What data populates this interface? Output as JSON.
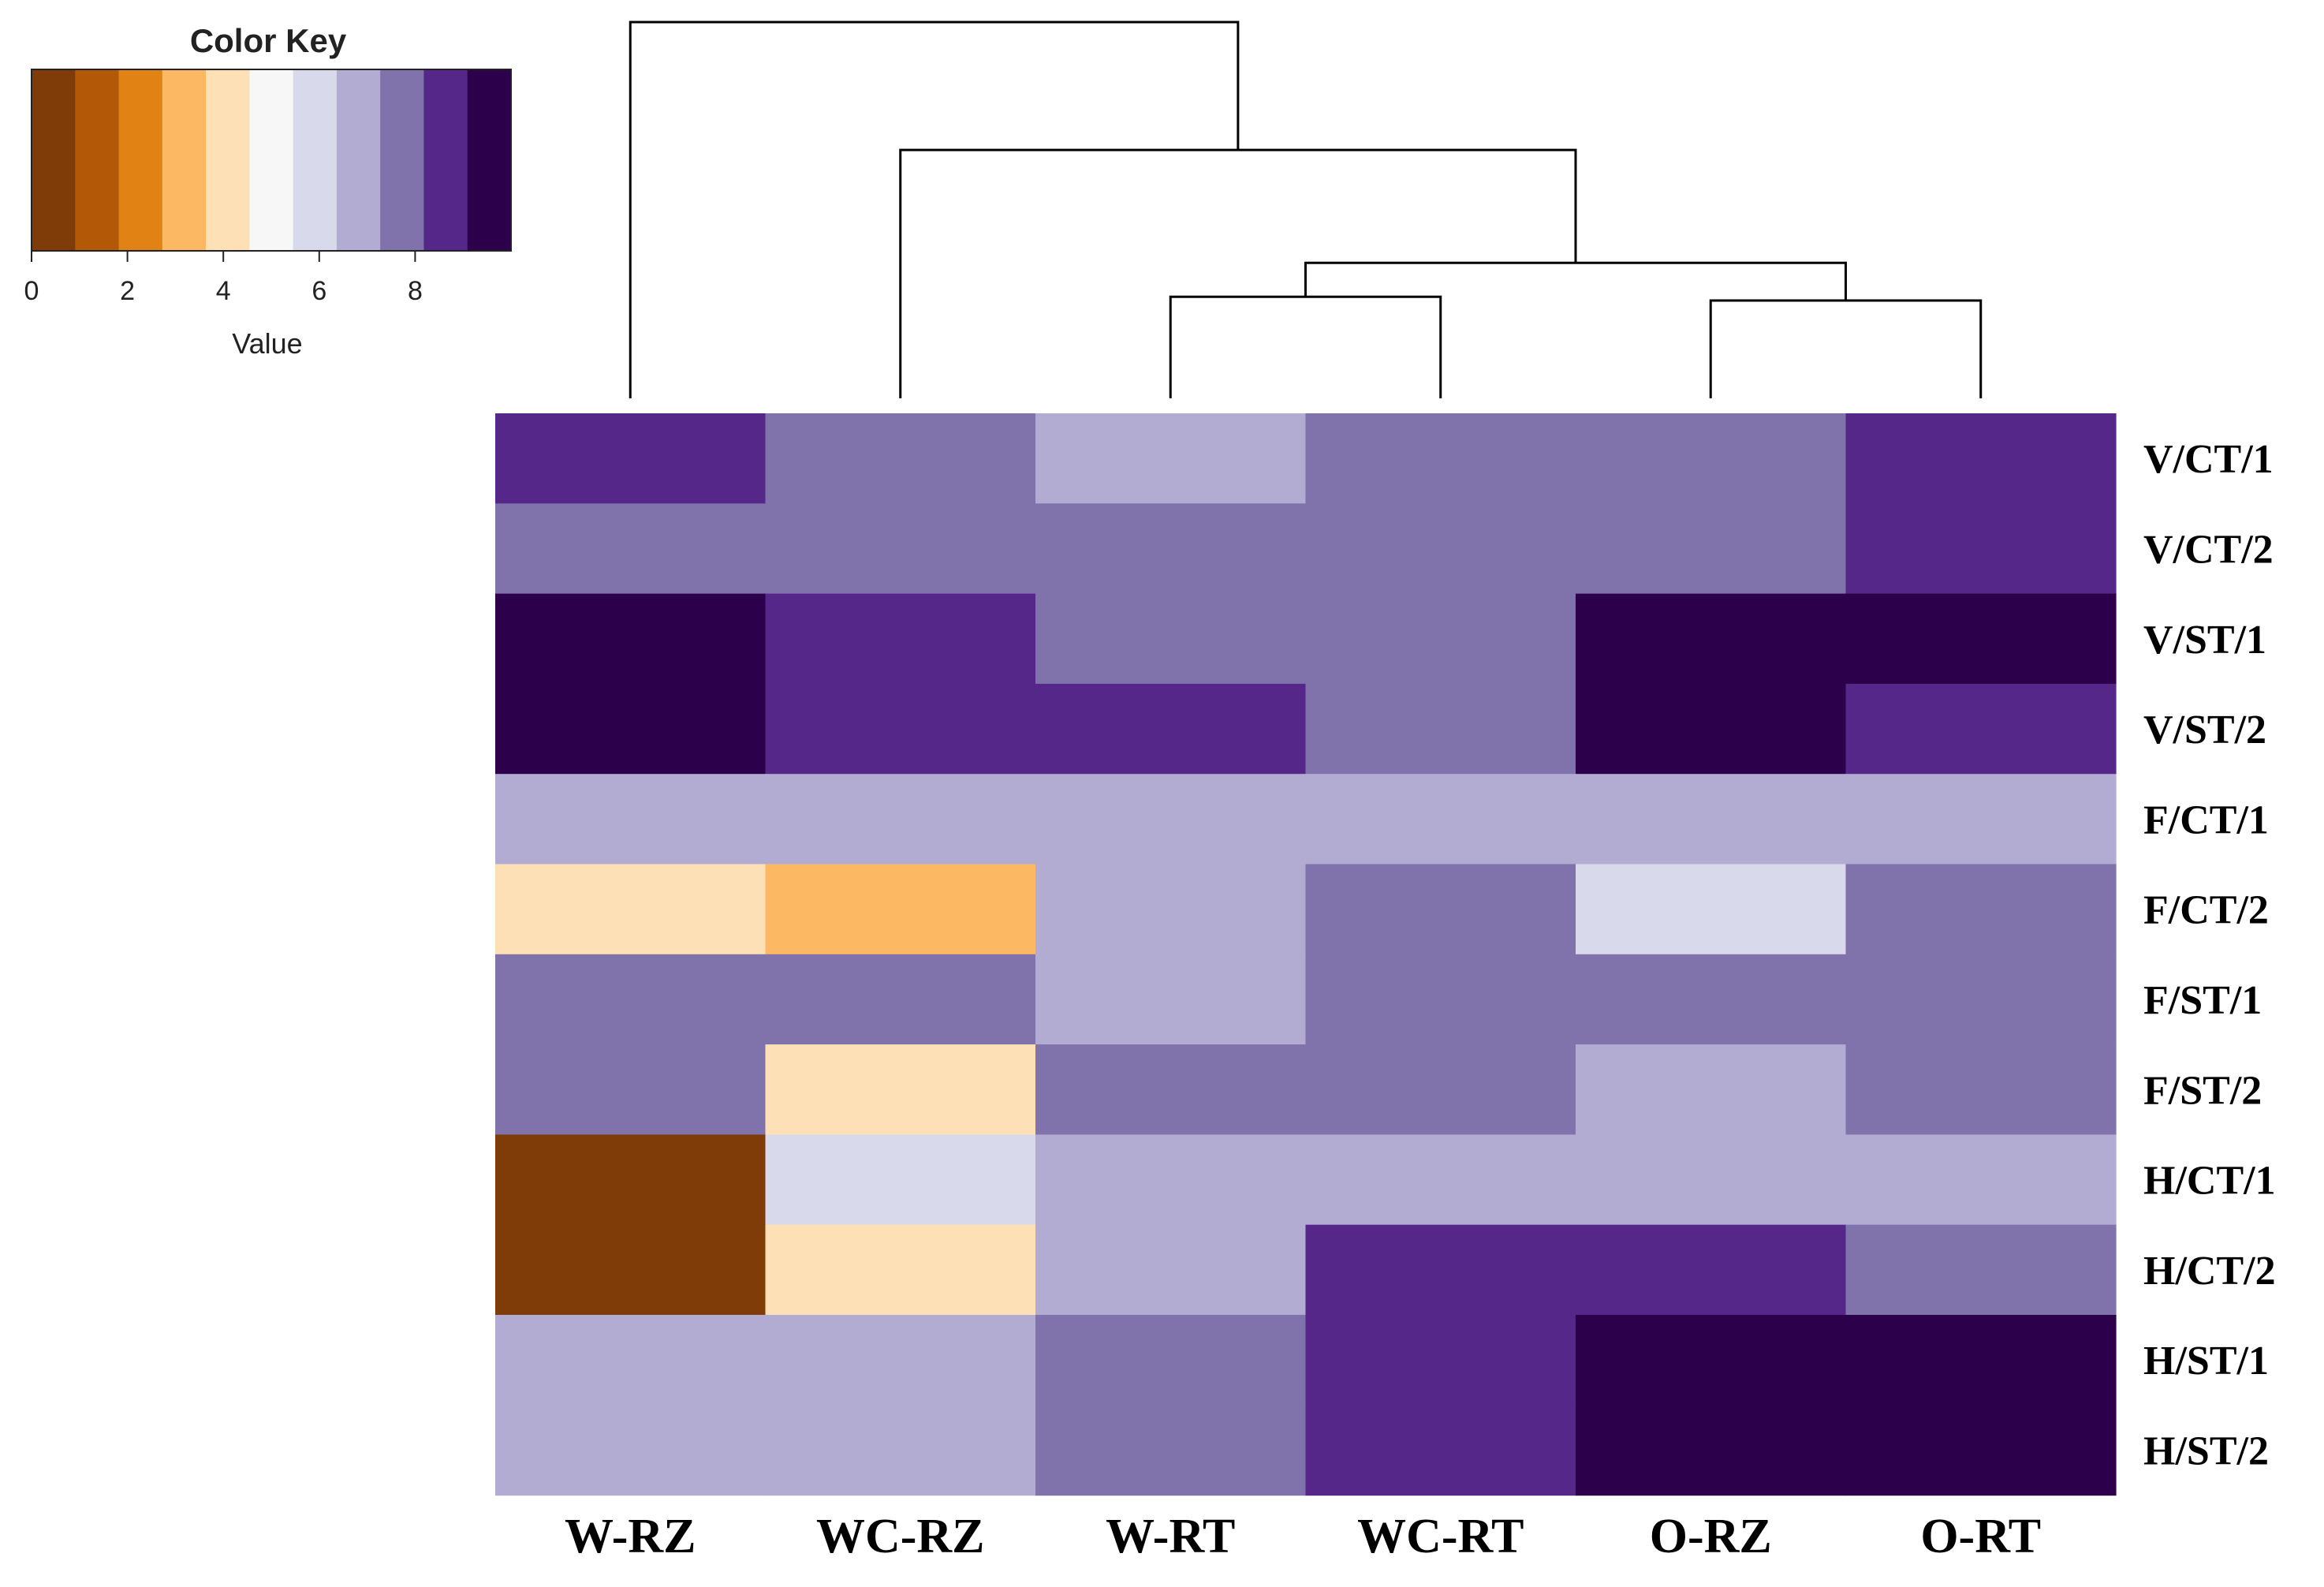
{
  "chart_data": {
    "type": "heatmap",
    "rows": [
      "V/CT/1",
      "V/CT/2",
      "V/ST/1",
      "V/ST/2",
      "F/CT/1",
      "F/CT/2",
      "F/ST/1",
      "F/ST/2",
      "H/CT/1",
      "H/CT/2",
      "H/ST/1",
      "H/ST/2"
    ],
    "columns": [
      "W-RZ",
      "WC-RZ",
      "W-RT",
      "WC-RT",
      "O-RZ",
      "O-RT"
    ],
    "values": [
      [
        9,
        8,
        7,
        8,
        8,
        9
      ],
      [
        8,
        8,
        8,
        8,
        8,
        9
      ],
      [
        10,
        9,
        8,
        8,
        10,
        10
      ],
      [
        10,
        9,
        9,
        8,
        10,
        9
      ],
      [
        7,
        7,
        7,
        7,
        7,
        7
      ],
      [
        4,
        3,
        7,
        8,
        6,
        8
      ],
      [
        8,
        8,
        7,
        8,
        8,
        8
      ],
      [
        8,
        4,
        8,
        8,
        7,
        8
      ],
      [
        0,
        6,
        7,
        7,
        7,
        7
      ],
      [
        0,
        4,
        7,
        9,
        9,
        8
      ],
      [
        7,
        7,
        8,
        9,
        10,
        10
      ],
      [
        7,
        7,
        8,
        9,
        10,
        10
      ]
    ],
    "color_key": {
      "title": "Color Key",
      "xlabel": "Value",
      "ticks": [
        "0",
        "2",
        "4",
        "6",
        "8"
      ],
      "tick_values": [
        0,
        2,
        4,
        6,
        8
      ],
      "range": [
        0,
        10
      ],
      "colors": [
        "#7f3b08",
        "#b35806",
        "#e08214",
        "#fdb863",
        "#fee0b6",
        "#f7f7f7",
        "#d8daeb",
        "#b2abd2",
        "#8073ac",
        "#542788",
        "#2d004b"
      ]
    },
    "dendrogram": {
      "leaves": [
        "W-RZ",
        "WC-RZ",
        "W-RT",
        "WC-RT",
        "O-RZ",
        "O-RT"
      ],
      "merges": [
        {
          "left": "W-RT",
          "right": "WC-RT",
          "height": 2.7
        },
        {
          "left": "O-RZ",
          "right": "O-RT",
          "height": 2.6
        },
        {
          "left": "W-RT+WC-RT",
          "right": "O-RZ+O-RT",
          "height": 3.6
        },
        {
          "left": "WC-RZ",
          "right": "W-RT+WC-RT+O-RZ+O-RT",
          "height": 6.6
        },
        {
          "left": "W-RZ",
          "right": "WC-RZ+W-RT+WC-RT+O-RZ+O-RT",
          "height": 10
        }
      ]
    }
  }
}
